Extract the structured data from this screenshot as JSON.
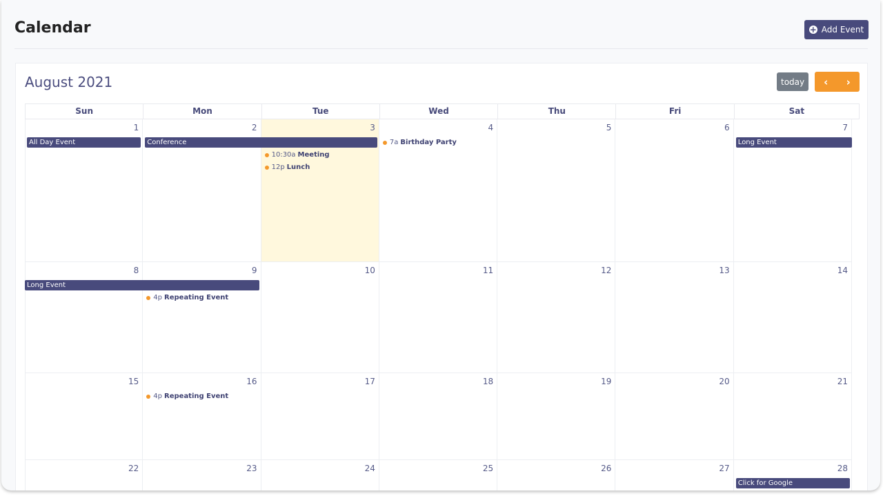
{
  "header": {
    "title": "Calendar",
    "add_event_label": "Add Event",
    "add_icon": "plus-circle-icon"
  },
  "calendar": {
    "month_title": "August 2021",
    "today_label": "today",
    "prev_icon": "chevron-left-icon",
    "next_icon": "chevron-right-icon",
    "accent_color": "#f4982b",
    "event_color": "#484a7c",
    "today_highlight": "#fff8dd",
    "weekdays": [
      "Sun",
      "Mon",
      "Tue",
      "Wed",
      "Thu",
      "Fri",
      "Sat"
    ],
    "weeks": [
      {
        "days": [
          "1",
          "2",
          "3",
          "4",
          "5",
          "6",
          "7"
        ],
        "today_index": 2,
        "bars": [
          {
            "title": "All Day Event",
            "col": 0,
            "span": 1,
            "lane": 0
          },
          {
            "title": "Conference",
            "col": 1,
            "span": 2,
            "lane": 0
          },
          {
            "title": "Long Event",
            "col": 6,
            "span": 1,
            "lane": 0,
            "continues": true
          }
        ],
        "timed": [
          {
            "time": "10:30a",
            "title": "Meeting",
            "col": 2,
            "lane": 1
          },
          {
            "time": "12p",
            "title": "Lunch",
            "col": 2,
            "lane": 2
          },
          {
            "time": "7a",
            "title": "Birthday Party",
            "col": 3,
            "lane": 0
          }
        ]
      },
      {
        "days": [
          "8",
          "9",
          "10",
          "11",
          "12",
          "13",
          "14"
        ],
        "bars": [
          {
            "title": "Long Event",
            "col": 0,
            "span": 2,
            "lane": 0,
            "continued": true
          }
        ],
        "timed": [
          {
            "time": "4p",
            "title": "Repeating Event",
            "col": 1,
            "lane": 1
          }
        ]
      },
      {
        "days": [
          "15",
          "16",
          "17",
          "18",
          "19",
          "20",
          "21"
        ],
        "bars": [],
        "timed": [
          {
            "time": "4p",
            "title": "Repeating Event",
            "col": 1,
            "lane": 0
          }
        ]
      },
      {
        "days": [
          "22",
          "23",
          "24",
          "25",
          "26",
          "27",
          "28"
        ],
        "bars": [
          {
            "title": "Click for Google",
            "col": 6,
            "span": 1,
            "lane": 0
          }
        ],
        "timed": []
      }
    ]
  }
}
